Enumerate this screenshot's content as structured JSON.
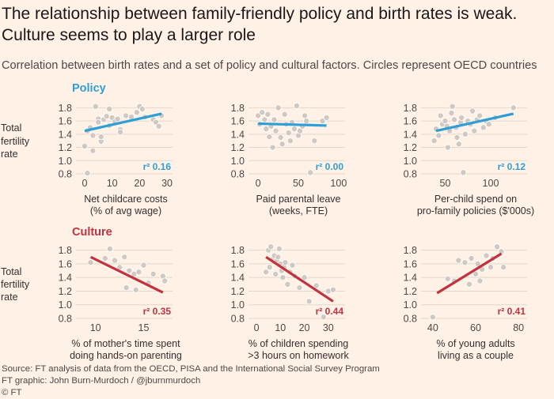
{
  "title": {
    "line1": "The relationship between family-friendly policy and birth rates is weak.",
    "line2": "Culture seems to play a larger role"
  },
  "subtitle": "Correlation between birth rates and a set of policy and cultural factors. Circles represent OECD countries",
  "footer": {
    "source": "Source: FT analysis of data from the OECD, PISA and the International Social Survey Program",
    "credit": "FT graphic: John Burn-Murdoch / @jburnmurdoch",
    "copyright": "© FT"
  },
  "colors": {
    "background": "#fff1e5",
    "policy": "#2e9fd6",
    "culture": "#c0323f",
    "dots": "#cdc7c0",
    "dot_stroke": "#fbf0e6",
    "grid": "#e2d7cc"
  },
  "groups": {
    "policy": "Policy",
    "culture": "Culture"
  },
  "side_ylabel": [
    "Total",
    "fertility",
    "rate"
  ],
  "chart_data": [
    {
      "type": "scatter",
      "group": "policy",
      "title": "Net childcare costs",
      "xlabel": [
        "Net childcare costs",
        "(% of avg wage)"
      ],
      "ylabel": "Total fertility rate",
      "xlim": [
        -2,
        32
      ],
      "ylim": [
        0.8,
        1.9
      ],
      "xticks": [
        0,
        10,
        20,
        30
      ],
      "yticks": [
        0.8,
        1.0,
        1.2,
        1.4,
        1.6,
        1.8
      ],
      "r2_label": "r² 0.16",
      "trend": [
        [
          0,
          1.45
        ],
        [
          28,
          1.71
        ]
      ],
      "x": [
        0,
        1,
        2,
        3,
        4,
        5,
        5,
        6,
        6,
        7,
        8,
        9,
        9,
        10,
        11,
        12,
        13,
        13,
        15,
        17,
        19,
        20,
        21,
        22,
        25,
        26,
        27,
        28,
        1,
        3
      ],
      "y": [
        1.22,
        1.45,
        1.5,
        1.38,
        1.82,
        1.63,
        1.58,
        1.29,
        1.36,
        1.62,
        1.67,
        1.53,
        1.78,
        1.65,
        1.59,
        1.63,
        1.47,
        1.43,
        1.68,
        1.66,
        1.73,
        1.82,
        1.78,
        1.66,
        1.62,
        1.58,
        1.52,
        1.68,
        0.81,
        1.15
      ]
    },
    {
      "type": "scatter",
      "group": "policy",
      "title": "Paid parental leave",
      "xlabel": [
        "Paid parental leave",
        "(weeks, FTE)"
      ],
      "ylabel": "Total fertility rate",
      "xlim": [
        -8,
        108
      ],
      "ylim": [
        0.8,
        1.9
      ],
      "xticks": [
        0,
        50,
        100
      ],
      "yticks": [
        0.8,
        1.0,
        1.2,
        1.4,
        1.6,
        1.8
      ],
      "r2_label": "r² 0.00",
      "trend": [
        [
          0,
          1.56
        ],
        [
          85,
          1.53
        ]
      ],
      "x": [
        0,
        2,
        5,
        8,
        10,
        12,
        14,
        16,
        18,
        20,
        22,
        25,
        28,
        30,
        33,
        35,
        38,
        40,
        42,
        45,
        48,
        50,
        52,
        55,
        58,
        60,
        65,
        70,
        80,
        85
      ],
      "y": [
        1.68,
        1.55,
        1.73,
        1.62,
        1.48,
        1.7,
        1.36,
        1.52,
        1.2,
        1.62,
        1.45,
        1.8,
        1.35,
        1.25,
        1.7,
        1.55,
        1.42,
        1.3,
        1.58,
        1.48,
        1.83,
        1.38,
        1.45,
        1.52,
        1.68,
        1.6,
        0.82,
        1.3,
        1.6,
        1.65
      ]
    },
    {
      "type": "scatter",
      "group": "policy",
      "title": "Per-child spend on pro-family policies",
      "xlabel": [
        "Per-child spend on",
        "pro-family policies ($'000s)"
      ],
      "ylabel": "Total fertility rate",
      "xlim": [
        27,
        140
      ],
      "ylim": [
        0.8,
        1.9
      ],
      "xticks": [
        50,
        100
      ],
      "yticks": [
        0.8,
        1.0,
        1.2,
        1.4,
        1.6,
        1.8
      ],
      "r2_label": "r² 0.12",
      "trend": [
        [
          40,
          1.45
        ],
        [
          125,
          1.71
        ]
      ],
      "x": [
        38,
        40,
        43,
        45,
        47,
        50,
        52,
        53,
        55,
        57,
        58,
        60,
        62,
        63,
        65,
        67,
        68,
        70,
        72,
        75,
        78,
        80,
        82,
        85,
        88,
        92,
        95,
        98,
        105,
        125
      ],
      "y": [
        1.3,
        1.48,
        1.38,
        1.68,
        1.55,
        1.6,
        1.52,
        1.2,
        1.45,
        1.72,
        1.82,
        1.62,
        1.5,
        1.35,
        1.25,
        1.58,
        1.65,
        0.82,
        1.4,
        1.6,
        1.55,
        1.75,
        1.45,
        1.62,
        1.68,
        1.5,
        1.6,
        1.55,
        1.65,
        1.8
      ]
    },
    {
      "type": "scatter",
      "group": "culture",
      "title": "% of mother's time spent doing hands-on parenting",
      "xlabel": [
        "% of mother's time spent",
        "doing hands-on parenting"
      ],
      "ylabel": "Total fertility rate",
      "xlim": [
        8.3,
        18
      ],
      "ylim": [
        0.8,
        1.9
      ],
      "xticks": [
        10,
        15
      ],
      "yticks": [
        0.8,
        1.0,
        1.2,
        1.4,
        1.6,
        1.8
      ],
      "r2_label": "r² 0.35",
      "trend": [
        [
          9.5,
          1.7
        ],
        [
          17,
          1.18
        ]
      ],
      "x": [
        9.5,
        11,
        11.5,
        12,
        12.5,
        13,
        13.5,
        14,
        14.2,
        14.5,
        15,
        15.5,
        16,
        17,
        17.2,
        13.2
      ],
      "y": [
        1.62,
        1.68,
        1.82,
        1.65,
        1.55,
        1.7,
        1.5,
        1.45,
        1.22,
        1.48,
        1.58,
        1.32,
        1.45,
        1.42,
        1.35,
        1.25
      ]
    },
    {
      "type": "scatter",
      "group": "culture",
      "title": "% of children spending >3 hours on homework",
      "xlabel": [
        "% of children spending",
        ">3 hours on homework"
      ],
      "ylabel": "Total fertility rate",
      "xlim": [
        -2,
        37
      ],
      "ylim": [
        0.8,
        1.9
      ],
      "xticks": [
        0,
        10,
        20,
        30
      ],
      "yticks": [
        0.8,
        1.0,
        1.2,
        1.4,
        1.6,
        1.8
      ],
      "r2_label": "r² 0.44",
      "trend": [
        [
          4,
          1.7
        ],
        [
          32,
          1.05
        ]
      ],
      "x": [
        4,
        5,
        5.5,
        6,
        7,
        7.5,
        8,
        8.5,
        9,
        9.5,
        10,
        10.5,
        11,
        11.5,
        12,
        13,
        14,
        15,
        16,
        18,
        20,
        22,
        25,
        28,
        30,
        32
      ],
      "y": [
        1.48,
        1.8,
        1.55,
        1.85,
        1.68,
        1.72,
        1.45,
        1.65,
        1.7,
        1.82,
        1.6,
        1.5,
        1.4,
        1.55,
        1.62,
        1.3,
        1.48,
        1.58,
        1.42,
        1.25,
        1.4,
        1.05,
        1.28,
        0.82,
        1.2,
        1.22
      ]
    },
    {
      "type": "scatter",
      "group": "culture",
      "title": "% of young adults living as a couple",
      "xlabel": [
        "% of young adults",
        "living as a couple"
      ],
      "ylabel": "Total fertility rate",
      "xlim": [
        36,
        84
      ],
      "ylim": [
        0.8,
        1.9
      ],
      "xticks": [
        40,
        60,
        80
      ],
      "yticks": [
        0.8,
        1.0,
        1.2,
        1.4,
        1.6,
        1.8
      ],
      "r2_label": "r² 0.41",
      "trend": [
        [
          42,
          1.17
        ],
        [
          72,
          1.75
        ]
      ],
      "x": [
        40,
        47,
        50,
        52,
        55,
        57,
        58,
        60,
        61,
        62,
        63,
        65,
        67,
        68,
        70,
        72,
        73
      ],
      "y": [
        0.82,
        1.38,
        1.35,
        1.65,
        1.62,
        1.3,
        1.68,
        1.45,
        1.6,
        1.35,
        1.52,
        1.72,
        1.55,
        1.68,
        1.85,
        1.78,
        1.55
      ]
    }
  ]
}
